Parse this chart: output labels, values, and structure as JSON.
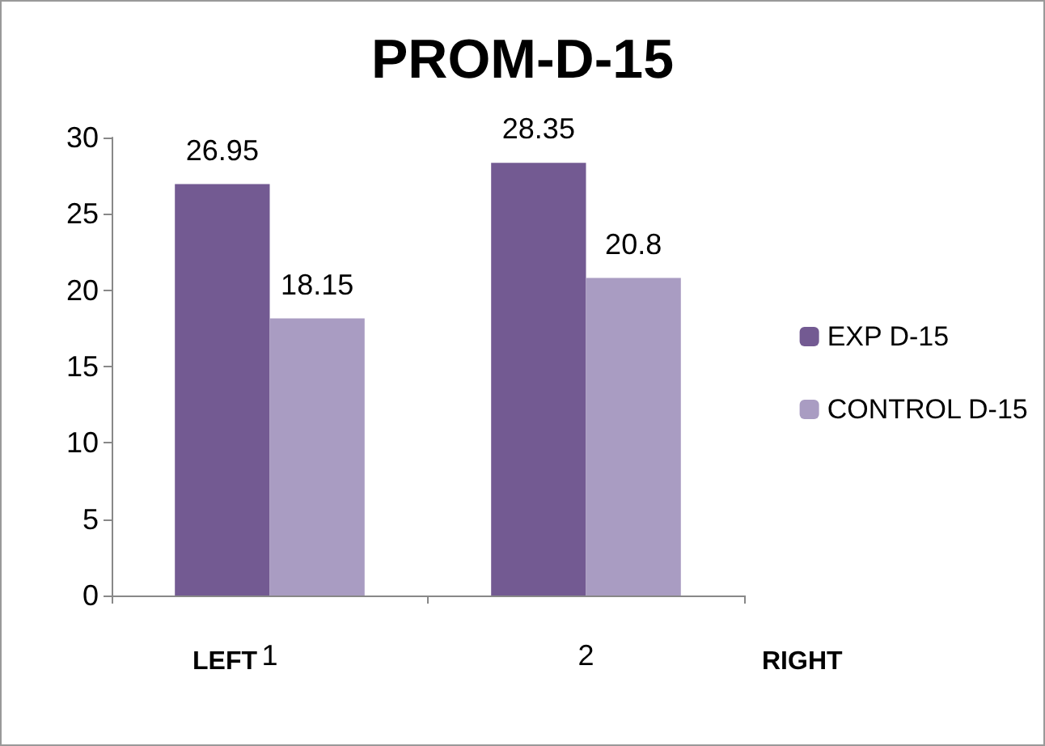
{
  "chart_data": {
    "type": "bar",
    "title": "PROM-D-15",
    "categories": [
      "1",
      "2"
    ],
    "series": [
      {
        "name": "EXP D-15",
        "color": "#735a92",
        "values": [
          26.95,
          28.35
        ]
      },
      {
        "name": "CONTROL D-15",
        "color": "#a99cc2",
        "values": [
          18.15,
          20.8
        ]
      }
    ],
    "ylim": [
      0,
      30
    ],
    "yticks": [
      0,
      5,
      10,
      15,
      20,
      25,
      30
    ],
    "grid": false,
    "legend": "right",
    "data_labels": true,
    "annotations": [
      "LEFT",
      "RIGHT"
    ]
  }
}
